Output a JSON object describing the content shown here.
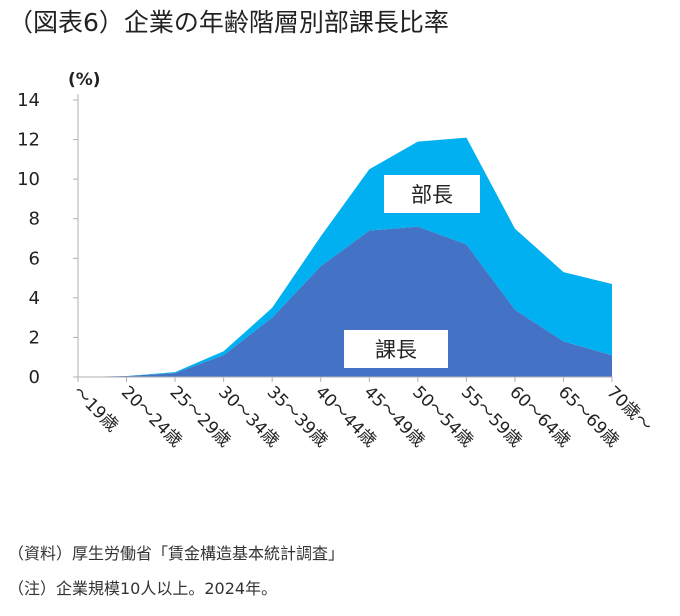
{
  "page": {
    "title": "（図表6）企業の年齢階層別部課長比率",
    "source_note": "（資料）厚生労働省「賃金構造基本統計調査」",
    "scope_note": "（注）企業規模10人以上。2024年。"
  },
  "chart_data": {
    "type": "area",
    "stacked": true,
    "title": "",
    "xlabel": "",
    "ylabel": "(%)",
    "ylim": [
      0,
      14
    ],
    "yticks": [
      0,
      2,
      4,
      6,
      8,
      10,
      12,
      14
    ],
    "grid": false,
    "categories": [
      "～19歳",
      "20～24歳",
      "25～29歳",
      "30～34歳",
      "35～39歳",
      "40～44歳",
      "45～49歳",
      "50～54歳",
      "55～59歳",
      "60～64歳",
      "65～69歳",
      "70歳～"
    ],
    "series": [
      {
        "name": "課長",
        "color": "#4472C4",
        "values": [
          0.0,
          0.05,
          0.2,
          1.1,
          3.0,
          5.6,
          7.4,
          7.6,
          6.7,
          3.4,
          1.8,
          1.1
        ]
      },
      {
        "name": "部長",
        "color": "#00B0F0",
        "values": [
          0.0,
          0.0,
          0.05,
          0.2,
          0.5,
          1.5,
          3.1,
          4.3,
          5.4,
          4.1,
          3.5,
          3.6
        ]
      }
    ]
  }
}
